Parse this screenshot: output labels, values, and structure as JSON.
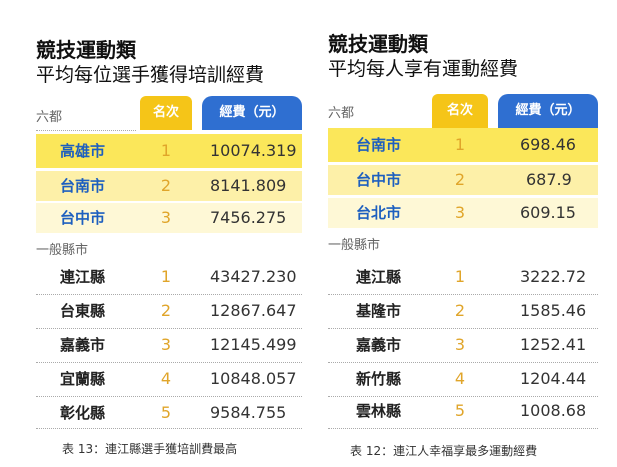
{
  "left": {
    "title_line1": "競技運動類",
    "title_line2": "平均每位選手獲得培訓經費",
    "group1_label": "六都",
    "header_rank": "名次",
    "header_cost": "經費（元）",
    "group1_rows": [
      {
        "name": "高雄市",
        "rank": "1",
        "cost": "10074.319"
      },
      {
        "name": "台南市",
        "rank": "2",
        "cost": "8141.809"
      },
      {
        "name": "台中市",
        "rank": "3",
        "cost": "7456.275"
      }
    ],
    "group2_label": "一般縣市",
    "group2_rows": [
      {
        "name": "連江縣",
        "rank": "1",
        "cost": "43427.230"
      },
      {
        "name": "台東縣",
        "rank": "2",
        "cost": "12867.647"
      },
      {
        "name": "嘉義市",
        "rank": "3",
        "cost": "12145.499"
      },
      {
        "name": "宜蘭縣",
        "rank": "4",
        "cost": "10848.057"
      },
      {
        "name": "彰化縣",
        "rank": "5",
        "cost": "9584.755"
      }
    ],
    "caption": "表 13：連江縣選手獲培訓費最高"
  },
  "right": {
    "title_line1": "競技運動類",
    "title_line2": "平均每人享有運動經費",
    "group1_label": "六都",
    "header_rank": "名次",
    "header_cost": "經費（元）",
    "group1_rows": [
      {
        "name": "台南市",
        "rank": "1",
        "cost": "698.46"
      },
      {
        "name": "台中市",
        "rank": "2",
        "cost": "687.9"
      },
      {
        "name": "台北市",
        "rank": "3",
        "cost": "609.15"
      }
    ],
    "group2_label": "一般縣市",
    "group2_rows": [
      {
        "name": "連江縣",
        "rank": "1",
        "cost": "3222.72"
      },
      {
        "name": "基隆市",
        "rank": "2",
        "cost": "1585.46"
      },
      {
        "name": "嘉義市",
        "rank": "3",
        "cost": "1252.41"
      },
      {
        "name": "新竹縣",
        "rank": "4",
        "cost": "1204.44"
      },
      {
        "name": "雲林縣",
        "rank": "5",
        "cost": "1008.68"
      }
    ],
    "caption": "表 12：連江人幸福享最多運動經費"
  },
  "colors": {
    "rank_header": "#f5c518",
    "cost_header": "#2f6fd1",
    "highlight_strong": "#fbe75a",
    "highlight_mid": "#fdf0a8",
    "highlight_light": "#fef8d6",
    "rank_text": "#e0a52a",
    "name_blue": "#1d5fbf"
  }
}
